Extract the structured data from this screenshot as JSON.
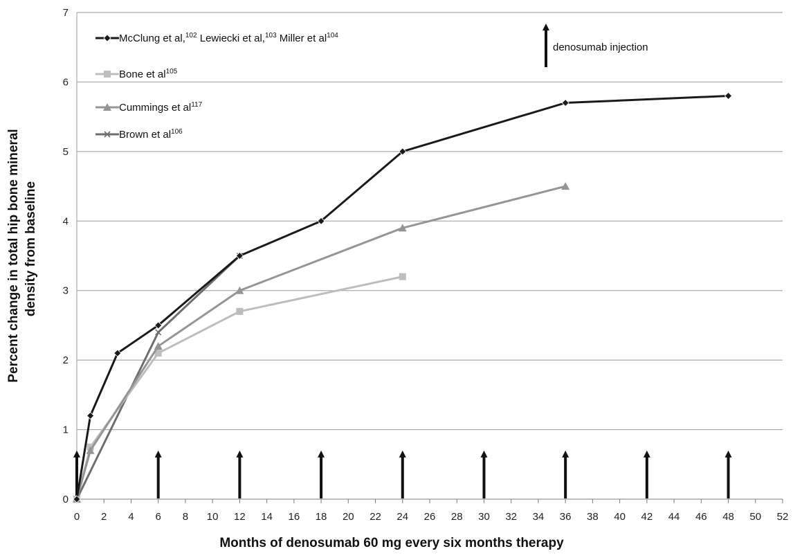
{
  "chart_data": {
    "type": "line",
    "title": "",
    "xlabel": "Months of denosumab 60 mg every six months therapy",
    "ylabel_lines": [
      "Percent change in total hip bone mineral",
      "density from baseline"
    ],
    "xlim": [
      0,
      52
    ],
    "ylim": [
      0,
      7
    ],
    "x_ticks": [
      0,
      2,
      4,
      6,
      8,
      10,
      12,
      14,
      16,
      18,
      20,
      22,
      24,
      26,
      28,
      30,
      32,
      34,
      36,
      38,
      40,
      42,
      44,
      46,
      48,
      50,
      52
    ],
    "y_ticks": [
      0,
      1,
      2,
      3,
      4,
      5,
      6,
      7
    ],
    "grid": "horizontal",
    "legend_position": "top-left",
    "series": [
      {
        "name": "McClung et al, Lewiecki et al, Miller et al",
        "legend_parts": [
          {
            "text": "McClung et al,"
          },
          {
            "sup": "102"
          },
          {
            "text": " Lewiecki et al,"
          },
          {
            "sup": "103"
          },
          {
            "text": " Miller et al"
          },
          {
            "sup": "104"
          }
        ],
        "color": "#1a1a1a",
        "marker": "diamond",
        "x": [
          0,
          1,
          3,
          6,
          12,
          18,
          24,
          36,
          48
        ],
        "y": [
          0,
          1.2,
          2.1,
          2.5,
          3.5,
          4.0,
          5.0,
          5.7,
          5.8
        ]
      },
      {
        "name": "Bone et al",
        "legend_parts": [
          {
            "text": "Bone et al"
          },
          {
            "sup": "105"
          }
        ],
        "color": "#bdbdbd",
        "marker": "square",
        "x": [
          0,
          1,
          6,
          12,
          24
        ],
        "y": [
          0,
          0.75,
          2.1,
          2.7,
          3.2
        ]
      },
      {
        "name": "Cummings et al",
        "legend_parts": [
          {
            "text": "Cummings et al"
          },
          {
            "sup": "117"
          }
        ],
        "color": "#959595",
        "marker": "triangle",
        "x": [
          0,
          1,
          6,
          12,
          24,
          36
        ],
        "y": [
          0,
          0.7,
          2.2,
          3.0,
          3.9,
          4.5
        ]
      },
      {
        "name": "Brown et al",
        "legend_parts": [
          {
            "text": "Brown et al"
          },
          {
            "sup": "106"
          }
        ],
        "color": "#6e6e6e",
        "marker": "x",
        "x": [
          0,
          6,
          12
        ],
        "y": [
          0,
          2.4,
          3.5
        ]
      }
    ],
    "injections": {
      "label": "denosumab injection",
      "months": [
        0,
        6,
        12,
        18,
        24,
        30,
        36,
        42,
        48
      ]
    }
  }
}
